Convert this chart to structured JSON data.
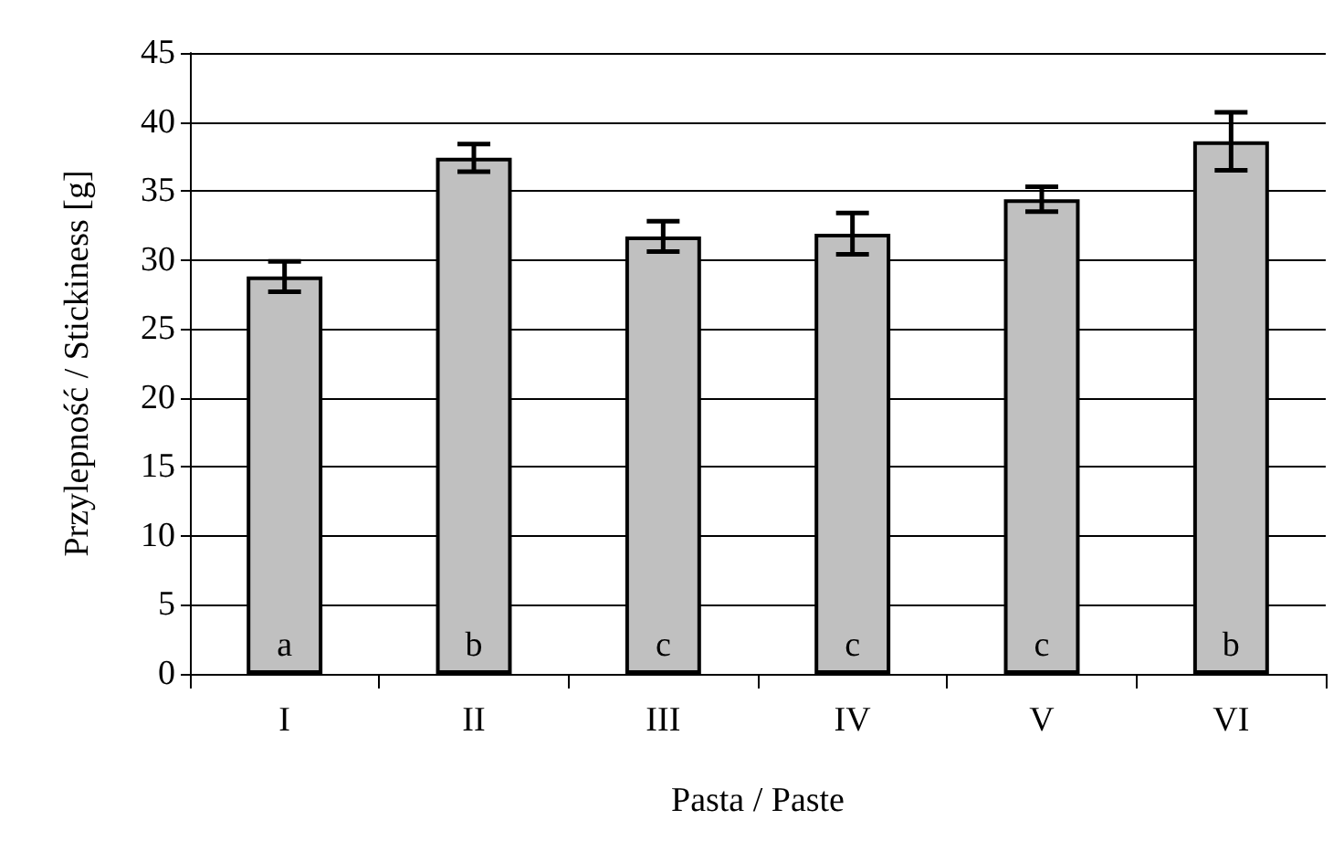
{
  "chart_data": {
    "type": "bar",
    "xlabel": "Pasta / Paste",
    "ylabel": "Przylepność / Stickiness [g]",
    "categories": [
      "I",
      "II",
      "III",
      "IV",
      "V",
      "VI"
    ],
    "values": [
      28.8,
      37.4,
      31.7,
      31.9,
      34.4,
      38.6
    ],
    "errors": [
      1.1,
      1.0,
      1.1,
      1.5,
      0.9,
      2.1
    ],
    "color": "#c0c0c0",
    "value_labels": [
      "a",
      "b",
      "c",
      "c",
      "c",
      "b"
    ],
    "ylim": [
      0,
      45
    ],
    "yticks": [
      0,
      5,
      10,
      15,
      20,
      25,
      30,
      35,
      40,
      45
    ],
    "grid": "y"
  }
}
